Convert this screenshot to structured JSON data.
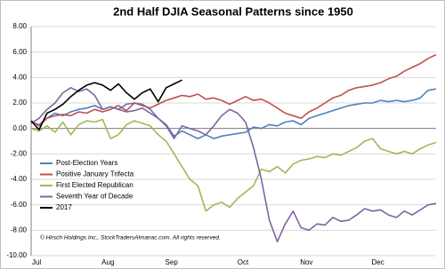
{
  "chart_data": {
    "type": "line",
    "title": "2nd Half DJIA Seasonal Patterns since 1950",
    "annotation": "© Hirsch Holdings Inc., StockTradersAlmanac.com. All rights reserved.",
    "categories": [
      "Jul",
      null,
      null,
      null,
      null,
      null,
      null,
      null,
      null,
      "Aug",
      null,
      null,
      null,
      null,
      null,
      null,
      null,
      "Sep",
      null,
      null,
      null,
      null,
      null,
      null,
      null,
      null,
      "Oct",
      null,
      null,
      null,
      null,
      null,
      null,
      null,
      "Nov",
      null,
      null,
      null,
      null,
      null,
      null,
      null,
      null,
      "Dec",
      null,
      null,
      null,
      null,
      null,
      null,
      null,
      null
    ],
    "ylim": [
      -10,
      8
    ],
    "yticks": [
      {
        "value": -10,
        "label": "-10.00"
      },
      {
        "value": -8,
        "label": "-8.00"
      },
      {
        "value": -6,
        "label": "-6.00"
      },
      {
        "value": -4,
        "label": "-4.00"
      },
      {
        "value": -2,
        "label": "-2.00"
      },
      {
        "value": 0,
        "label": "0.00"
      },
      {
        "value": 2,
        "label": "2.00"
      },
      {
        "value": 4,
        "label": "4.00"
      },
      {
        "value": 6,
        "label": "6.00"
      },
      {
        "value": 8,
        "label": "8.00"
      }
    ],
    "grid": true,
    "legend": "left",
    "series": [
      {
        "name": "Post-Election Years",
        "color": "#4f81bd",
        "values": [
          0.5,
          0.3,
          0.8,
          1.2,
          1.0,
          1.3,
          1.5,
          1.6,
          1.8,
          1.5,
          1.7,
          1.5,
          1.9,
          2.0,
          1.9,
          1.5,
          0.8,
          0.3,
          -0.6,
          -0.2,
          -0.5,
          -0.8,
          -0.5,
          -0.8,
          -0.6,
          -0.5,
          -0.4,
          -0.3,
          0.1,
          0.0,
          0.3,
          0.2,
          0.5,
          0.6,
          0.3,
          0.8,
          1.0,
          1.2,
          1.4,
          1.6,
          1.8,
          1.9,
          2.0,
          2.0,
          2.2,
          2.1,
          2.2,
          2.1,
          2.2,
          2.4,
          3.0,
          3.1
        ]
      },
      {
        "name": "Positive January Trifecta",
        "color": "#c0504d",
        "values": [
          0.6,
          0.2,
          0.8,
          1.0,
          1.1,
          1.0,
          1.3,
          1.2,
          1.5,
          1.3,
          1.5,
          1.8,
          1.4,
          2.0,
          1.8,
          1.6,
          1.9,
          2.2,
          2.4,
          2.6,
          2.5,
          2.7,
          2.3,
          2.4,
          2.2,
          1.9,
          2.2,
          2.5,
          2.2,
          2.3,
          2.0,
          1.6,
          1.2,
          1.0,
          0.8,
          1.3,
          1.6,
          2.0,
          2.4,
          2.6,
          3.0,
          3.2,
          3.3,
          3.4,
          3.6,
          3.9,
          4.1,
          4.5,
          4.8,
          5.1,
          5.5,
          5.8
        ]
      },
      {
        "name": "First Elected Republican",
        "color": "#9bbb59",
        "values": [
          0.0,
          -0.2,
          0.2,
          -0.3,
          0.5,
          -0.5,
          0.3,
          0.6,
          0.5,
          0.7,
          -0.8,
          -0.5,
          0.3,
          0.6,
          0.4,
          0.2,
          -0.5,
          -1.0,
          -2.0,
          -3.0,
          -4.0,
          -4.5,
          -6.5,
          -6.0,
          -5.8,
          -6.2,
          -5.5,
          -5.0,
          -4.5,
          -3.2,
          -3.4,
          -3.0,
          -3.5,
          -2.8,
          -2.5,
          -2.4,
          -2.2,
          -2.3,
          -2.0,
          -2.1,
          -1.8,
          -1.5,
          -1.0,
          -0.8,
          -1.6,
          -1.8,
          -2.0,
          -1.8,
          -2.0,
          -1.6,
          -1.3,
          -1.1
        ]
      },
      {
        "name": "Seventh Year of Decade",
        "color": "#8064a2",
        "values": [
          0.4,
          0.8,
          1.5,
          2.0,
          2.8,
          3.2,
          2.9,
          3.1,
          2.6,
          1.5,
          1.7,
          1.5,
          1.3,
          1.4,
          1.6,
          1.2,
          0.8,
          0.2,
          -0.8,
          0.2,
          0.0,
          -0.2,
          -0.5,
          0.2,
          1.0,
          1.5,
          1.2,
          0.5,
          -1.5,
          -4.0,
          -7.2,
          -8.9,
          -7.5,
          -6.5,
          -7.8,
          -8.0,
          -7.5,
          -7.6,
          -7.0,
          -7.3,
          -7.2,
          -6.8,
          -6.3,
          -6.5,
          -6.4,
          -6.8,
          -7.0,
          -6.5,
          -6.8,
          -6.4,
          -6.0,
          -5.9
        ]
      },
      {
        "name": "2017",
        "color": "#000000",
        "values": [
          0.6,
          -0.1,
          1.2,
          1.5,
          1.9,
          2.5,
          3.0,
          3.4,
          3.6,
          3.4,
          3.0,
          3.5,
          2.8,
          2.3,
          2.8,
          3.1,
          2.1,
          3.2,
          3.5,
          3.8,
          null,
          null,
          null,
          null,
          null,
          null,
          null,
          null,
          null,
          null,
          null,
          null,
          null,
          null,
          null,
          null,
          null,
          null,
          null,
          null,
          null,
          null,
          null,
          null,
          null,
          null,
          null,
          null,
          null,
          null,
          null,
          null
        ]
      }
    ]
  }
}
